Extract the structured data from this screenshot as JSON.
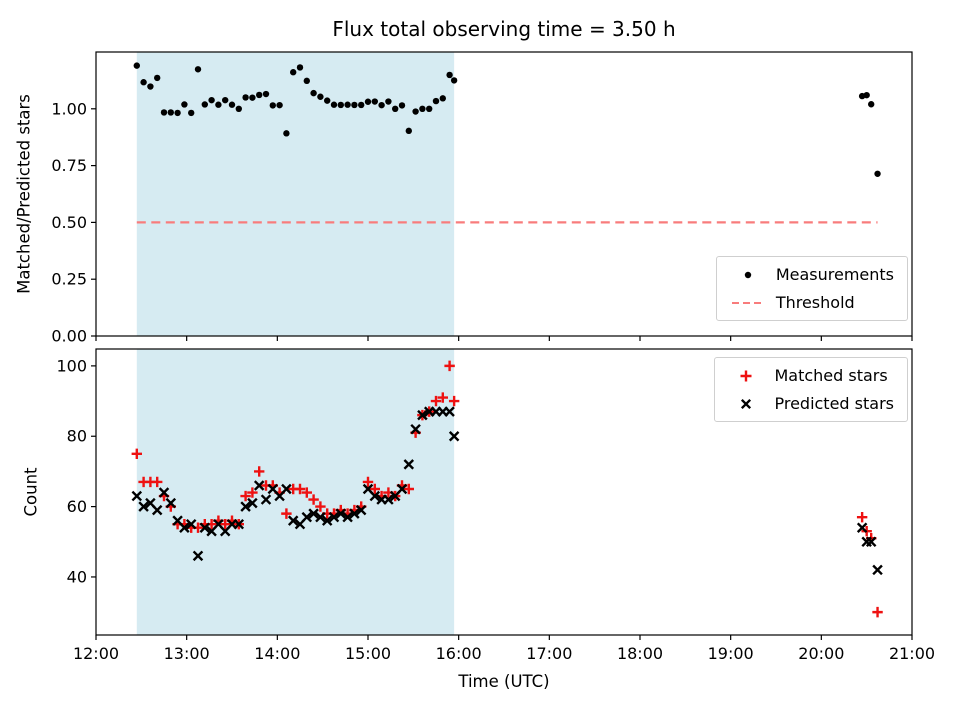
{
  "colors": {
    "background": "#ffffff",
    "axis": "#000000",
    "text": "#000000",
    "shade": "#add8e6",
    "shade_opacity": 0.5,
    "measurements": "#000000",
    "threshold": "#f87c7c",
    "matched": "#ee1111",
    "predicted": "#000000"
  },
  "chart_data": [
    {
      "type": "scatter",
      "title": "Flux total observing time = 3.50 h",
      "ylabel": "Matched/Predicted stars",
      "xlim": [
        12,
        21
      ],
      "ylim": [
        0,
        1.25
      ],
      "yticks": [
        0,
        0.25,
        0.5,
        0.75,
        1.0
      ],
      "ytick_labels": [
        "0.00",
        "0.25",
        "0.50",
        "0.75",
        "1.00"
      ],
      "xticks": [
        12,
        13,
        14,
        15,
        16,
        17,
        18,
        19,
        20,
        21
      ],
      "shaded_region_x": [
        12.45,
        15.95
      ],
      "threshold": {
        "y": 0.5,
        "x": [
          12.45,
          20.62
        ],
        "label": "Threshold"
      },
      "legend_position": "lower right",
      "series": [
        {
          "name": "Measurements",
          "marker": "dot",
          "color_key": "measurements",
          "x": [
            12.45,
            12.525,
            12.6,
            12.675,
            12.75,
            12.825,
            12.9,
            12.975,
            13.05,
            13.125,
            13.2,
            13.275,
            13.35,
            13.425,
            13.5,
            13.575,
            13.65,
            13.725,
            13.8,
            13.875,
            13.95,
            14.025,
            14.1,
            14.175,
            14.25,
            14.325,
            14.4,
            14.475,
            14.55,
            14.625,
            14.7,
            14.775,
            14.85,
            14.925,
            15.0,
            15.075,
            15.15,
            15.225,
            15.3,
            15.375,
            15.45,
            15.525,
            15.6,
            15.675,
            15.75,
            15.825,
            15.9,
            15.95,
            20.45,
            20.5,
            20.55,
            20.62
          ],
          "y": [
            1.19,
            1.117,
            1.098,
            1.136,
            0.984,
            0.984,
            0.982,
            1.019,
            0.982,
            1.174,
            1.019,
            1.038,
            1.018,
            1.038,
            1.018,
            1.0,
            1.05,
            1.049,
            1.061,
            1.065,
            1.015,
            1.016,
            0.892,
            1.161,
            1.182,
            1.123,
            1.069,
            1.053,
            1.036,
            1.018,
            1.017,
            1.018,
            1.017,
            1.017,
            1.031,
            1.032,
            1.016,
            1.032,
            1.0,
            1.015,
            0.903,
            0.988,
            1.0,
            1.0,
            1.034,
            1.046,
            1.149,
            1.125,
            1.056,
            1.06,
            1.02,
            0.714
          ]
        }
      ]
    },
    {
      "type": "scatter",
      "ylabel": "Count",
      "xlabel": "Time (UTC)",
      "xlim": [
        12,
        21
      ],
      "ylim": [
        23.5,
        104.8
      ],
      "yticks": [
        40,
        60,
        80,
        100
      ],
      "ytick_labels": [
        "40",
        "60",
        "80",
        "100"
      ],
      "xticks": [
        12,
        13,
        14,
        15,
        16,
        17,
        18,
        19,
        20,
        21
      ],
      "xtick_labels": [
        "12:00",
        "13:00",
        "14:00",
        "15:00",
        "16:00",
        "17:00",
        "18:00",
        "19:00",
        "20:00",
        "21:00"
      ],
      "shaded_region_x": [
        12.45,
        15.95
      ],
      "legend_position": "upper right",
      "series": [
        {
          "name": "Matched stars",
          "marker": "plus",
          "color_key": "matched",
          "x": [
            12.45,
            12.525,
            12.6,
            12.675,
            12.75,
            12.825,
            12.9,
            12.975,
            13.05,
            13.125,
            13.2,
            13.275,
            13.35,
            13.425,
            13.5,
            13.575,
            13.65,
            13.725,
            13.8,
            13.875,
            13.95,
            14.025,
            14.1,
            14.175,
            14.25,
            14.325,
            14.4,
            14.475,
            14.55,
            14.625,
            14.7,
            14.775,
            14.85,
            14.925,
            15.0,
            15.075,
            15.15,
            15.225,
            15.3,
            15.375,
            15.45,
            15.525,
            15.6,
            15.675,
            15.75,
            15.825,
            15.9,
            15.95,
            20.45,
            20.5,
            20.55,
            20.62
          ],
          "y": [
            75,
            67,
            67,
            67,
            63,
            60,
            55,
            55,
            54,
            54,
            55,
            55,
            56,
            55,
            56,
            55,
            63,
            64,
            70,
            66,
            66,
            64,
            58,
            65,
            65,
            64,
            62,
            60,
            58,
            58,
            59,
            58,
            59,
            60,
            67,
            65,
            63,
            64,
            63,
            66,
            65,
            81,
            86,
            87,
            90,
            91,
            100,
            90,
            57,
            53,
            51,
            30
          ]
        },
        {
          "name": "Predicted stars",
          "marker": "x",
          "color_key": "predicted",
          "x": [
            12.45,
            12.525,
            12.6,
            12.675,
            12.75,
            12.825,
            12.9,
            12.975,
            13.05,
            13.125,
            13.2,
            13.275,
            13.35,
            13.425,
            13.5,
            13.575,
            13.65,
            13.725,
            13.8,
            13.875,
            13.95,
            14.025,
            14.1,
            14.175,
            14.25,
            14.325,
            14.4,
            14.475,
            14.55,
            14.625,
            14.7,
            14.775,
            14.85,
            14.925,
            15.0,
            15.075,
            15.15,
            15.225,
            15.3,
            15.375,
            15.45,
            15.525,
            15.6,
            15.675,
            15.75,
            15.825,
            15.9,
            15.95,
            20.45,
            20.5,
            20.55,
            20.62
          ],
          "y": [
            63,
            60,
            61,
            59,
            64,
            61,
            56,
            54,
            55,
            46,
            54,
            53,
            55,
            53,
            55,
            55,
            60,
            61,
            66,
            62,
            65,
            63,
            65,
            56,
            55,
            57,
            58,
            57,
            56,
            57,
            58,
            57,
            58,
            59,
            65,
            63,
            62,
            62,
            63,
            65,
            72,
            82,
            86,
            87,
            87,
            87,
            87,
            80,
            54,
            50,
            50,
            42
          ]
        }
      ]
    }
  ]
}
